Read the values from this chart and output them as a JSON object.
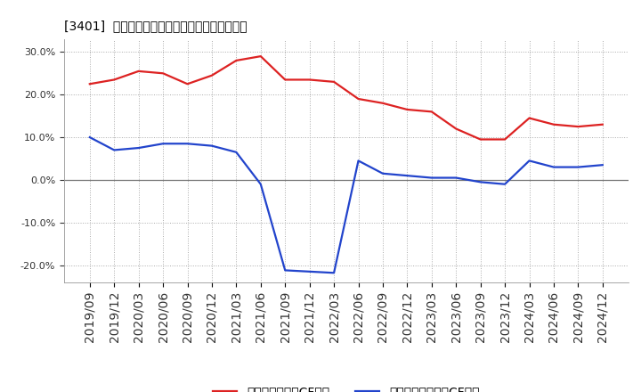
{
  "title": "[3401]  有利子負債キャッシュフロー比率の推移",
  "red_label": "有利子負債営業CF比率",
  "blue_label": "有利子負債フリーCF比率",
  "x_labels": [
    "2019/09",
    "2019/12",
    "2020/03",
    "2020/06",
    "2020/09",
    "2020/12",
    "2021/03",
    "2021/06",
    "2021/09",
    "2021/12",
    "2022/03",
    "2022/06",
    "2022/09",
    "2022/12",
    "2023/03",
    "2023/06",
    "2023/09",
    "2023/12",
    "2024/03",
    "2024/06",
    "2024/09",
    "2024/12"
  ],
  "red_values": [
    22.5,
    23.5,
    25.5,
    25.0,
    22.5,
    24.5,
    28.0,
    29.0,
    23.5,
    23.5,
    23.0,
    19.0,
    18.0,
    16.5,
    16.0,
    12.0,
    9.5,
    9.5,
    14.5,
    13.0,
    12.5,
    13.0
  ],
  "blue_values": [
    10.0,
    7.0,
    7.5,
    8.5,
    8.5,
    8.0,
    6.5,
    -1.0,
    -21.2,
    -21.5,
    -21.8,
    4.5,
    1.5,
    1.0,
    0.5,
    0.5,
    -0.5,
    -1.0,
    4.5,
    3.0,
    3.0,
    3.5
  ],
  "ylim": [
    -24.0,
    33.0
  ],
  "yticks": [
    -20.0,
    -10.0,
    0.0,
    10.0,
    20.0,
    30.0
  ],
  "red_color": "#dd2222",
  "blue_color": "#2244cc",
  "background_color": "#ffffff",
  "grid_color": "#aaaaaa",
  "title_fontsize": 12,
  "legend_fontsize": 9,
  "axis_fontsize": 8
}
